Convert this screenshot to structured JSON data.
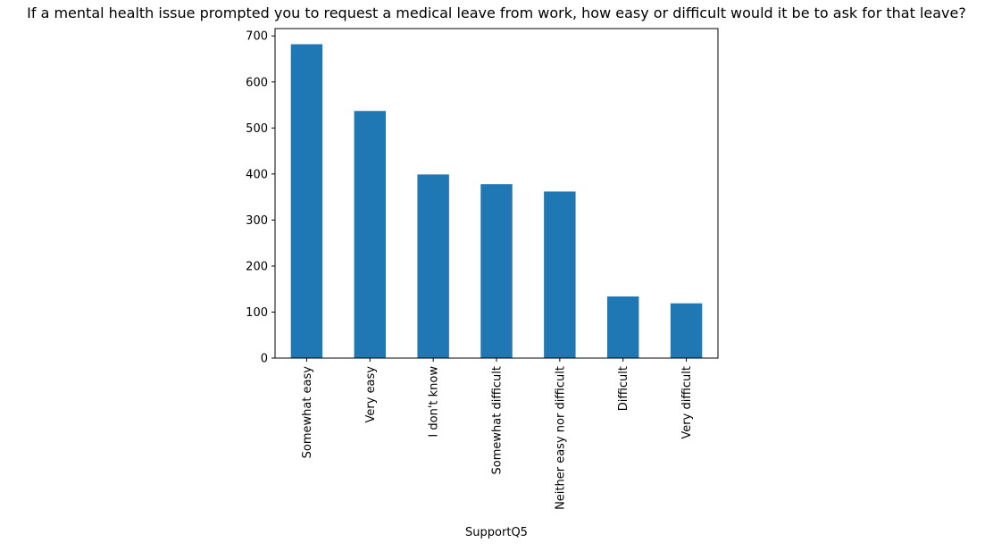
{
  "chart_data": {
    "type": "bar",
    "title": "If a mental health issue prompted you to request a medical leave from work, how easy or difficult would it be to ask for that leave?",
    "xlabel": "SupportQ5",
    "ylabel": "",
    "categories": [
      "Somewhat easy",
      "Very easy",
      "I don't know",
      "Somewhat difficult",
      "Neither easy nor difficult",
      "Difficult",
      "Very difficult"
    ],
    "values": [
      682,
      537,
      399,
      378,
      362,
      134,
      119
    ],
    "ylim": [
      0,
      716
    ],
    "yticks": [
      0,
      100,
      200,
      300,
      400,
      500,
      600,
      700
    ],
    "grid": false,
    "legend": "none",
    "bar_color": "#1f77b4"
  }
}
